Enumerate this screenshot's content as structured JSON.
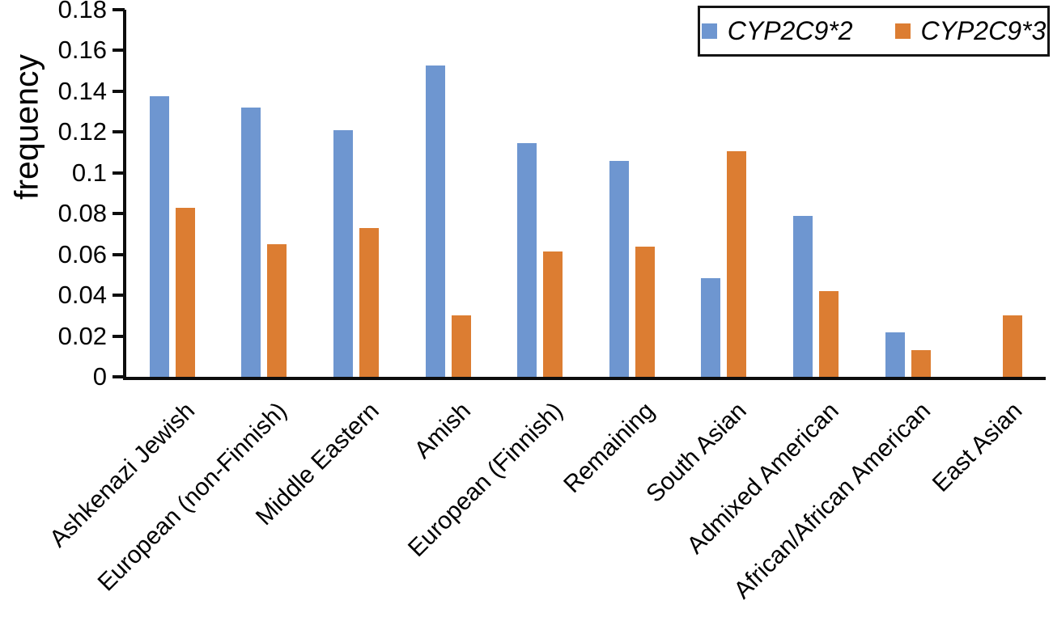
{
  "chart_data": {
    "type": "bar",
    "title": "",
    "xlabel": "",
    "ylabel": "frequency",
    "ylim": [
      0,
      0.18
    ],
    "y_ticks": [
      "0",
      "0.02",
      "0.04",
      "0.06",
      "0.08",
      "0.1",
      "0.12",
      "0.14",
      "0.16",
      "0.18"
    ],
    "grid": "off",
    "legend_position": "top-right",
    "categories": [
      "Ashkenazi Jewish",
      "European (non-Finnish)",
      "Middle Eastern",
      "Amish",
      "European (Finnish)",
      "Remaining",
      "South Asian",
      "Admixed American",
      "African/African American",
      "East Asian"
    ],
    "series": [
      {
        "name": "CYP2C9*2",
        "color": "#6E96D0",
        "values": [
          0.1375,
          0.132,
          0.121,
          0.1525,
          0.1145,
          0.106,
          0.0485,
          0.079,
          0.022,
          0
        ]
      },
      {
        "name": "CYP2C9*3",
        "color": "#DC7D32",
        "values": [
          0.083,
          0.065,
          0.073,
          0.03,
          0.0615,
          0.064,
          0.1105,
          0.042,
          0.013,
          0.03
        ]
      }
    ],
    "axis_color": "#0d0d0d",
    "text_color": "#000000"
  }
}
